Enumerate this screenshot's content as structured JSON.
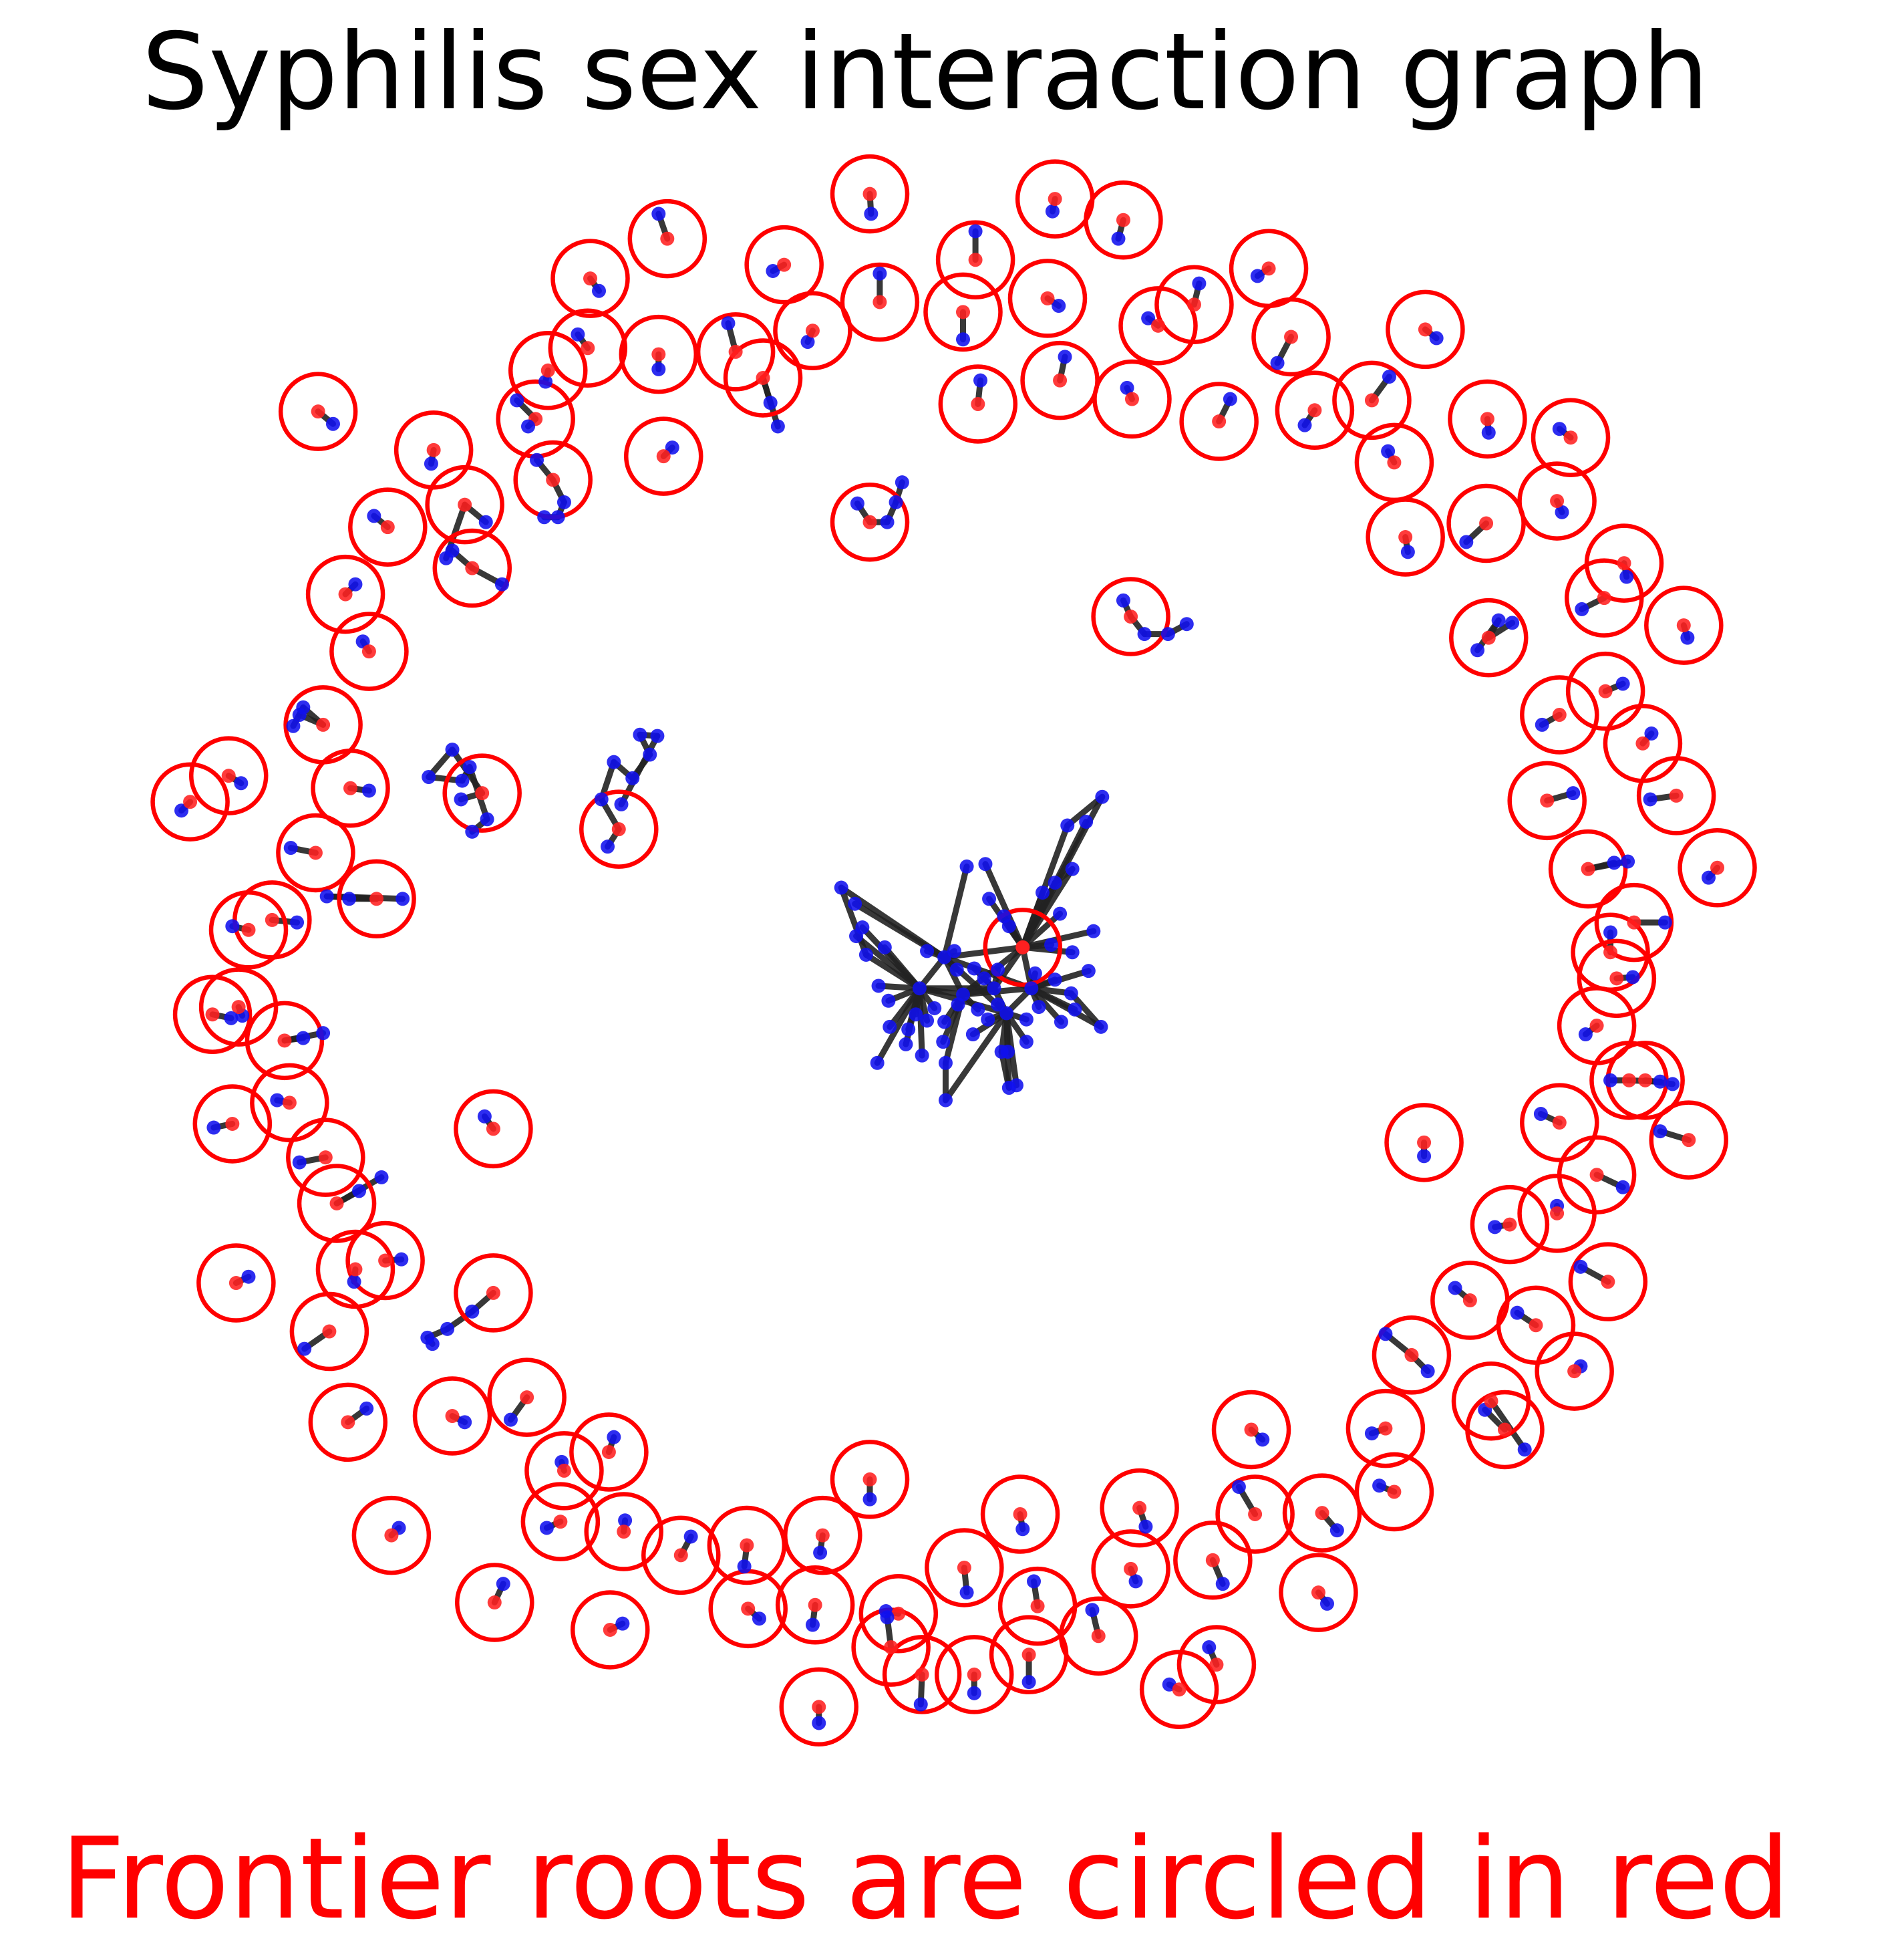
{
  "title": "Syphilis sex interaction graph",
  "caption": "Frontier roots are circled in red",
  "colors": {
    "title": "#000000",
    "caption": "#ff0000",
    "frontier_circle": "#ff0000",
    "root_node": "#ff2020",
    "node": "#1010ee",
    "edge": "#222222"
  }
}
